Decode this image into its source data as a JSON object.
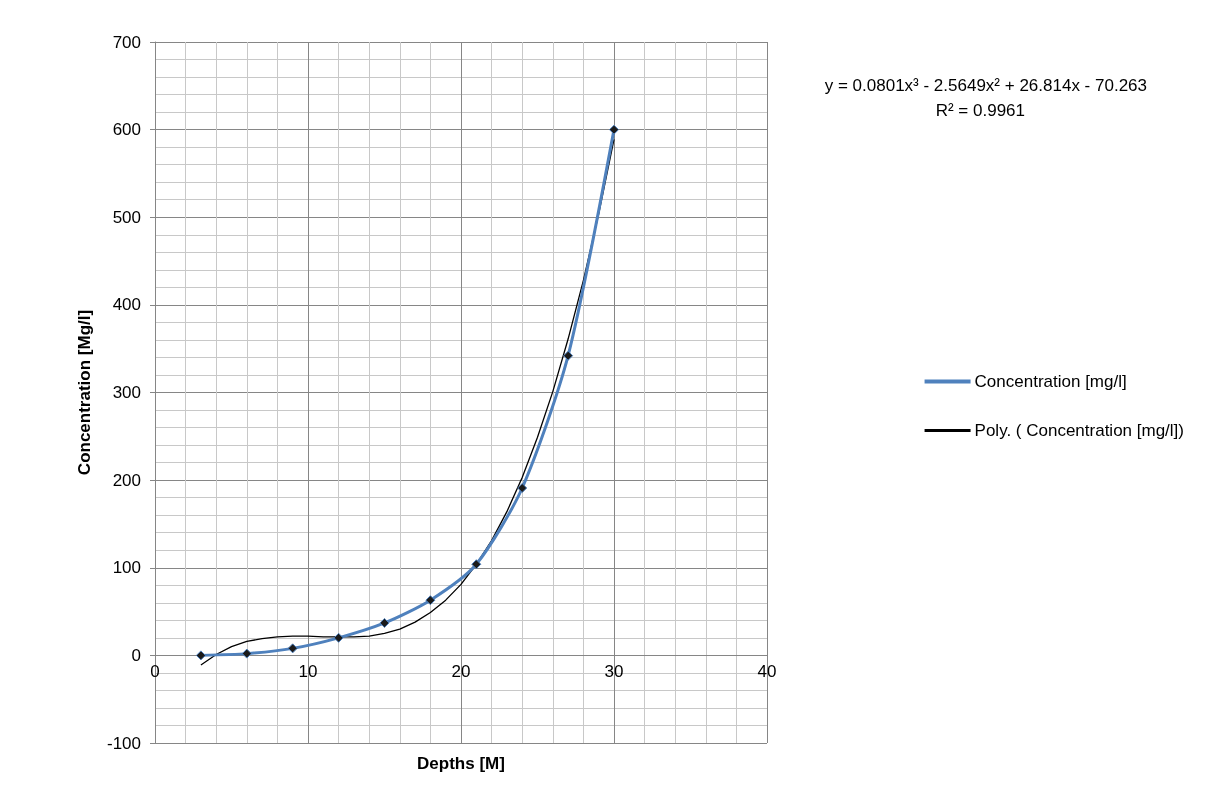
{
  "chart_data": {
    "type": "line",
    "xlabel": "Depths [M]",
    "ylabel": "Concentration [Mg/l]",
    "xlim": [
      0,
      40
    ],
    "xticks": [
      0,
      10,
      20,
      30,
      40
    ],
    "ylim": [
      -100,
      700
    ],
    "yticks": [
      -100,
      0,
      100,
      200,
      300,
      400,
      500,
      600,
      700
    ],
    "grid": true,
    "legend": "right",
    "marker": "diamond",
    "x": [
      3,
      6,
      9,
      12,
      15,
      18,
      21,
      24,
      27,
      30
    ],
    "series": [
      {
        "name": "Concentration [mg/l]",
        "color": "#4f81bd",
        "values": [
          0,
          2,
          8,
          20,
          37,
          63,
          104,
          191,
          342,
          600
        ]
      },
      {
        "name": "Poly. ( Concentration [mg/l])",
        "color": "#000000",
        "marker": "none",
        "x": [
          3,
          4,
          5,
          6,
          7,
          8,
          9,
          10,
          11,
          12,
          13,
          14,
          15,
          16,
          17,
          18,
          19,
          20,
          21,
          22,
          23,
          24,
          25,
          26,
          27,
          28,
          29,
          30
        ],
        "values": [
          -11,
          1,
          10,
          16,
          19,
          21,
          22,
          22,
          21,
          21,
          21,
          22,
          25,
          30,
          38,
          49,
          63,
          81,
          104,
          131,
          164,
          203,
          249,
          301,
          361,
          428,
          504,
          589
        ]
      }
    ],
    "annotations": [
      "y = 0.0801x³ - 2.5649x² + 26.814x - 70.263",
      "R² = 0.9961"
    ]
  }
}
